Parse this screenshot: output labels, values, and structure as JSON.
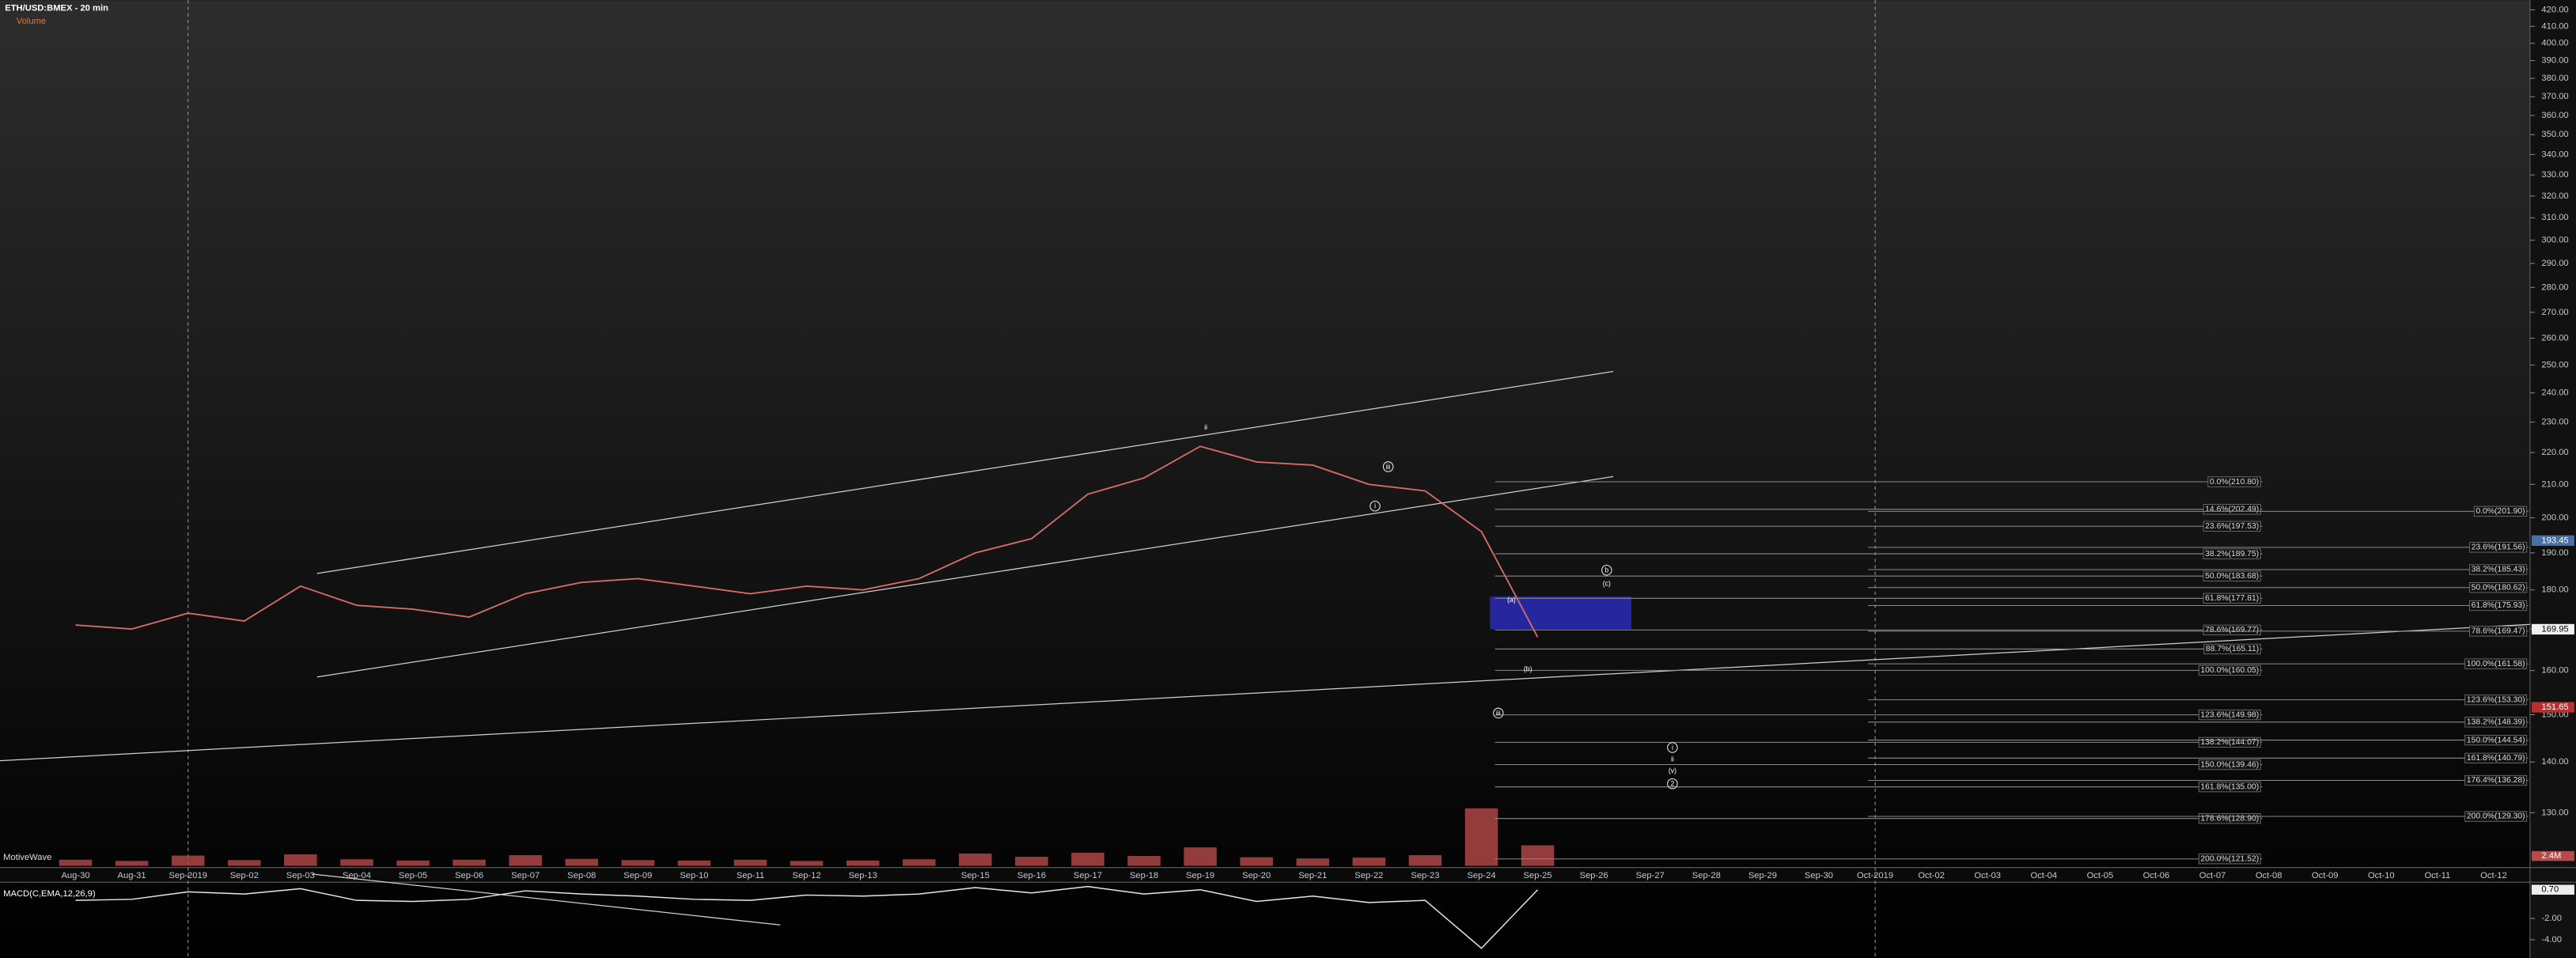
{
  "chart_data": {
    "type": "line",
    "title": "ETH/USD:BMEX - 20 min",
    "watermark": "MotiveWave",
    "log_scale": true,
    "color": "#d46a6a",
    "categories": [
      "Aug-30",
      "Aug-31",
      "Sep-2019",
      "Sep-02",
      "Sep-03",
      "Sep-04",
      "Sep-05",
      "Sep-06",
      "Sep-07",
      "Sep-08",
      "Sep-09",
      "Sep-10",
      "Sep-11",
      "Sep-12",
      "Sep-13",
      null,
      "Sep-15",
      "Sep-16",
      "Sep-17",
      "Sep-18",
      "Sep-19",
      "Sep-20",
      "Sep-21",
      "Sep-22",
      "Sep-23",
      "Sep-24",
      "Sep-25",
      "Sep-26",
      "Sep-27",
      "Sep-28",
      "Sep-29",
      "Sep-30",
      "Oct-2019",
      "Oct-02",
      "Oct-03",
      "Oct-04",
      "Oct-05",
      "Oct-06",
      "Oct-07",
      "Oct-08",
      "Oct-09",
      "Oct-10",
      "Oct-11",
      "Oct-12"
    ],
    "values": [
      171,
      170,
      174,
      172,
      181,
      176,
      175,
      173,
      179,
      182,
      183,
      181,
      179,
      181,
      180,
      183,
      190,
      194,
      207,
      212,
      222,
      217,
      216,
      210,
      208,
      196,
      168,
      null,
      null,
      null,
      null,
      null,
      null,
      null,
      null,
      null,
      null,
      null,
      null,
      null,
      null,
      null,
      null,
      null
    ],
    "ylim": [
      120,
      426
    ],
    "yticks": [
      {
        "value": 130,
        "label": "130.00"
      },
      {
        "value": 140,
        "label": "140.00"
      },
      {
        "value": 150,
        "label": "150.00"
      },
      {
        "value": 160,
        "label": "160.00"
      },
      {
        "value": 170,
        "label": "170.00"
      },
      {
        "value": 180,
        "label": "180.00"
      },
      {
        "value": 190,
        "label": "190.00"
      },
      {
        "value": 200,
        "label": "200.00"
      },
      {
        "value": 210,
        "label": "210.00"
      },
      {
        "value": 220,
        "label": "220.00"
      },
      {
        "value": 230,
        "label": "230.00"
      },
      {
        "value": 240,
        "label": "240.00"
      },
      {
        "value": 250,
        "label": "250.00"
      },
      {
        "value": 260,
        "label": "260.00"
      },
      {
        "value": 270,
        "label": "270.00"
      },
      {
        "value": 280,
        "label": "280.00"
      },
      {
        "value": 290,
        "label": "290.00"
      },
      {
        "value": 300,
        "label": "300.00"
      },
      {
        "value": 310,
        "label": "310.00"
      },
      {
        "value": 320,
        "label": "320.00"
      },
      {
        "value": 330,
        "label": "330.00"
      },
      {
        "value": 340,
        "label": "340.00"
      },
      {
        "value": 350,
        "label": "350.00"
      },
      {
        "value": 360,
        "label": "360.00"
      },
      {
        "value": 370,
        "label": "370.00"
      },
      {
        "value": 380,
        "label": "380.00"
      },
      {
        "value": 390,
        "label": "390.00"
      },
      {
        "value": 400,
        "label": "400.00"
      },
      {
        "value": 410,
        "label": "410.00"
      },
      {
        "value": 420,
        "label": "420.00"
      }
    ],
    "price_tags": [
      193.45,
      169.95,
      151.65
    ],
    "price_tag_colors": [
      "#4a6fa5",
      "#f0f0f0",
      "#b83030"
    ],
    "fib_levels_a": [
      {
        "value": 210.8,
        "label": "0.0%(210.80)"
      },
      {
        "value": 202.49,
        "label": "14.6%(202.49)"
      },
      {
        "value": 197.53,
        "label": "23.6%(197.53)"
      },
      {
        "value": 189.75,
        "label": "38.2%(189.75)"
      },
      {
        "value": 183.68,
        "label": "50.0%(183.68)"
      },
      {
        "value": 177.81,
        "label": "61.8%(177.81)"
      },
      {
        "value": 169.77,
        "label": "78.6%(169.77)"
      },
      {
        "value": 165.11,
        "label": "88.7%(165.11)"
      },
      {
        "value": 160.05,
        "label": "100.0%(160.05)"
      },
      {
        "value": 149.98,
        "label": "123.6%(149.98)"
      },
      {
        "value": 144.07,
        "label": "138.2%(144.07)"
      },
      {
        "value": 139.46,
        "label": "150.0%(139.46)"
      },
      {
        "value": 135.0,
        "label": "161.8%(135.00)"
      },
      {
        "value": 128.9,
        "label": "178.6%(128.90)"
      },
      {
        "value": 121.52,
        "label": "200.0%(121.52)"
      }
    ],
    "fib_levels_b": [
      {
        "value": 201.9,
        "label": "0.0%(201.90)"
      },
      {
        "value": 191.56,
        "label": "23.6%(191.56)"
      },
      {
        "value": 185.43,
        "label": "38.2%(185.43)"
      },
      {
        "value": 180.62,
        "label": "50.0%(180.62)"
      },
      {
        "value": 175.93,
        "label": "61.8%(175.93)"
      },
      {
        "value": 169.47,
        "label": "78.6%(169.47)"
      },
      {
        "value": 161.58,
        "label": "100.0%(161.58)"
      },
      {
        "value": 153.3,
        "label": "123.6%(153.30)"
      },
      {
        "value": 148.39,
        "label": "138.2%(148.39)"
      },
      {
        "value": 144.54,
        "label": "150.0%(144.54)"
      },
      {
        "value": 140.79,
        "label": "161.8%(140.79)"
      },
      {
        "value": 136.28,
        "label": "176.4%(136.28)"
      },
      {
        "value": 129.3,
        "label": "200.0%(129.30)"
      }
    ],
    "wave_labels": [
      "ii",
      "iii",
      "i",
      "(a)",
      "(b)",
      "b",
      "(c)",
      "iii",
      "i",
      "ii",
      "(v)",
      "2"
    ],
    "volume": {
      "name": "Volume",
      "color": "#b84a4a",
      "values": [
        1500000,
        1200000,
        2500000,
        1400000,
        2800000,
        1600000,
        1300000,
        1500000,
        2600000,
        1700000,
        1400000,
        1300000,
        1500000,
        1200000,
        1300000,
        1600000,
        3000000,
        2200000,
        3200000,
        2400000,
        4500000,
        2100000,
        1800000,
        2000000,
        2600000,
        14000000,
        5000000,
        null,
        null,
        null,
        null,
        null,
        null,
        null,
        null,
        null,
        null,
        null,
        null,
        null,
        null,
        null,
        null,
        null
      ],
      "ylim": [
        0,
        16000000
      ],
      "yticks": [
        {
          "value": 2400000,
          "label": "2.4M"
        }
      ]
    },
    "macd": {
      "name": "MACD(C,EMA,12,26,9)",
      "color": "#e8e8e8",
      "values": [
        -0.3,
        -0.2,
        0.5,
        0.3,
        0.8,
        -0.3,
        -0.4,
        -0.2,
        0.6,
        0.3,
        0.1,
        -0.2,
        -0.3,
        0.2,
        0.1,
        0.3,
        0.9,
        0.4,
        1.0,
        0.3,
        0.7,
        -0.4,
        0.1,
        -0.5,
        -0.3,
        -4.8,
        0.7,
        null,
        null,
        null,
        null,
        null,
        null,
        null,
        null,
        null,
        null,
        null,
        null,
        null,
        null,
        null,
        null,
        null
      ],
      "ylim": [
        -5.7,
        1.4
      ],
      "yticks": [
        {
          "value": -2,
          "label": "-2.00"
        },
        {
          "value": -4,
          "label": "-4.00"
        }
      ],
      "tags": [
        {
          "value": 0.7,
          "label": "0.70"
        }
      ]
    }
  }
}
